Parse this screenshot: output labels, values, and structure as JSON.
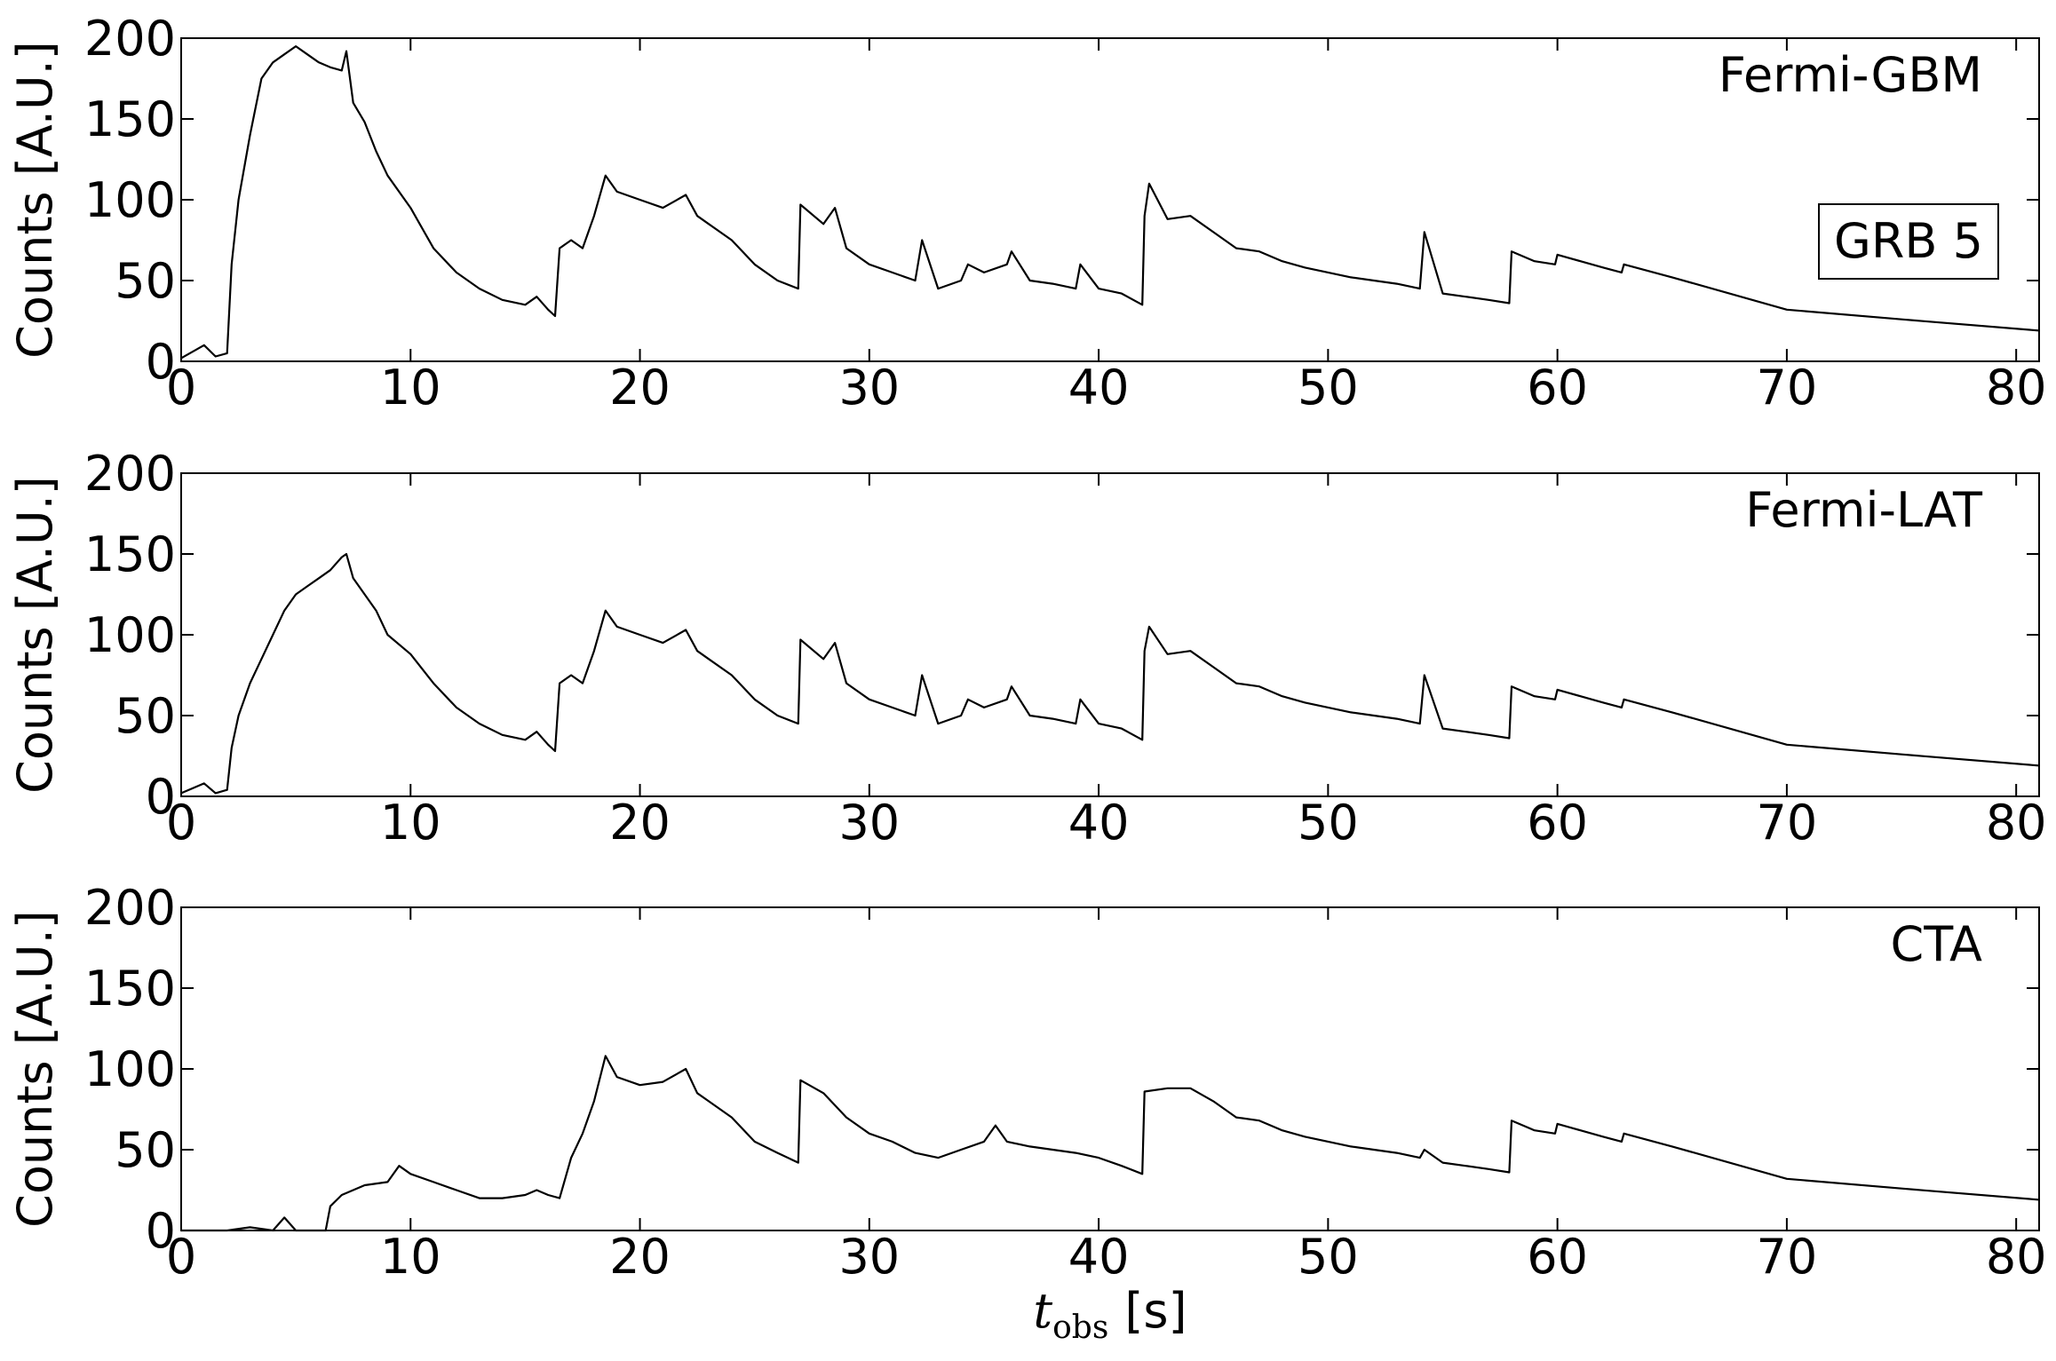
{
  "chart_data": [
    {
      "type": "line",
      "ylabel": "Counts [A.U.]",
      "annotation": "Fermi-GBM",
      "box_label": "GRB 5",
      "color": "#000000",
      "xlim": [
        0,
        81
      ],
      "xticks": [
        0,
        10,
        20,
        30,
        40,
        50,
        60,
        70,
        80
      ],
      "ylim": [
        0,
        200
      ],
      "yticks": [
        0,
        50,
        100,
        150,
        200
      ],
      "x": [
        0,
        1,
        1.5,
        2,
        2.2,
        2.5,
        3,
        3.5,
        4,
        4.5,
        5,
        5.5,
        6,
        6.5,
        7,
        7.2,
        7.5,
        8,
        8.5,
        9,
        10,
        11,
        12,
        13,
        14,
        15,
        15.5,
        16,
        16.3,
        16.5,
        17,
        17.5,
        18,
        18.5,
        19,
        20,
        21,
        22,
        22.5,
        23,
        24,
        25,
        26,
        26.9,
        27,
        28,
        28.5,
        29,
        30,
        31,
        32,
        32.3,
        33,
        34,
        34.3,
        35,
        36,
        36.2,
        37,
        38,
        39,
        39.2,
        40,
        41,
        41.9,
        42,
        42.2,
        43,
        44,
        45,
        46,
        47,
        48,
        49,
        50,
        51,
        52,
        53,
        54,
        54.2,
        55,
        56,
        57,
        57.9,
        58,
        59,
        59.9,
        60,
        61,
        62,
        62.8,
        62.9,
        65,
        70,
        75,
        81
      ],
      "values": [
        2,
        10,
        3,
        5,
        60,
        100,
        140,
        175,
        185,
        190,
        195,
        190,
        185,
        182,
        180,
        192,
        160,
        148,
        130,
        115,
        95,
        70,
        55,
        45,
        38,
        35,
        40,
        32,
        28,
        70,
        75,
        70,
        90,
        115,
        105,
        100,
        95,
        103,
        90,
        85,
        75,
        60,
        50,
        45,
        97,
        85,
        95,
        70,
        60,
        55,
        50,
        75,
        45,
        50,
        60,
        55,
        60,
        68,
        50,
        48,
        45,
        60,
        45,
        42,
        35,
        90,
        110,
        88,
        90,
        80,
        70,
        68,
        62,
        58,
        55,
        52,
        50,
        48,
        45,
        80,
        42,
        40,
        38,
        36,
        68,
        62,
        60,
        66,
        62,
        58,
        55,
        60,
        52,
        32,
        26,
        19
      ]
    },
    {
      "type": "line",
      "ylabel": "Counts [A.U.]",
      "annotation": "Fermi-LAT",
      "color": "#000000",
      "xlim": [
        0,
        81
      ],
      "xticks": [
        0,
        10,
        20,
        30,
        40,
        50,
        60,
        70,
        80
      ],
      "ylim": [
        0,
        200
      ],
      "yticks": [
        0,
        50,
        100,
        150,
        200
      ],
      "x": [
        0,
        1,
        1.5,
        2,
        2.2,
        2.5,
        3,
        3.5,
        4,
        4.5,
        5,
        5.5,
        6,
        6.5,
        7,
        7.2,
        7.5,
        8,
        8.5,
        9,
        10,
        11,
        12,
        13,
        14,
        15,
        15.5,
        16,
        16.3,
        16.5,
        17,
        17.5,
        18,
        18.5,
        19,
        20,
        21,
        22,
        22.5,
        23,
        24,
        25,
        26,
        26.9,
        27,
        28,
        28.5,
        29,
        30,
        31,
        32,
        32.3,
        33,
        34,
        34.3,
        35,
        36,
        36.2,
        37,
        38,
        39,
        39.2,
        40,
        41,
        41.9,
        42,
        42.2,
        43,
        44,
        45,
        46,
        47,
        48,
        49,
        50,
        51,
        52,
        53,
        54,
        54.2,
        55,
        56,
        57,
        57.9,
        58,
        59,
        59.9,
        60,
        61,
        62,
        62.8,
        62.9,
        65,
        70,
        75,
        81
      ],
      "values": [
        2,
        8,
        2,
        4,
        30,
        50,
        70,
        85,
        100,
        115,
        125,
        130,
        135,
        140,
        148,
        150,
        135,
        125,
        115,
        100,
        88,
        70,
        55,
        45,
        38,
        35,
        40,
        32,
        28,
        70,
        75,
        70,
        90,
        115,
        105,
        100,
        95,
        103,
        90,
        85,
        75,
        60,
        50,
        45,
        97,
        85,
        95,
        70,
        60,
        55,
        50,
        75,
        45,
        50,
        60,
        55,
        60,
        68,
        50,
        48,
        45,
        60,
        45,
        42,
        35,
        90,
        105,
        88,
        90,
        80,
        70,
        68,
        62,
        58,
        55,
        52,
        50,
        48,
        45,
        75,
        42,
        40,
        38,
        36,
        68,
        62,
        60,
        66,
        62,
        58,
        55,
        60,
        52,
        32,
        26,
        19
      ]
    },
    {
      "type": "line",
      "ylabel": "Counts [A.U.]",
      "annotation": "CTA",
      "color": "#000000",
      "xlabel": {
        "symbol": "t",
        "subscript": "obs",
        "unit": "[s]"
      },
      "xlim": [
        0,
        81
      ],
      "xticks": [
        0,
        10,
        20,
        30,
        40,
        50,
        60,
        70,
        80
      ],
      "ylim": [
        0,
        200
      ],
      "yticks": [
        0,
        50,
        100,
        150,
        200
      ],
      "x": [
        0,
        2,
        3,
        4,
        4.5,
        5,
        6.3,
        6.5,
        7,
        8,
        9,
        9.5,
        10,
        11,
        12,
        13,
        14,
        15,
        15.5,
        16,
        16.5,
        17,
        17.5,
        18,
        18.5,
        19,
        20,
        21,
        22,
        22.5,
        23,
        24,
        25,
        26,
        26.9,
        27,
        28,
        29,
        30,
        31,
        32,
        33,
        34,
        35,
        35.5,
        36,
        37,
        38,
        39,
        40,
        41,
        41.9,
        42,
        43,
        44,
        45,
        46,
        47,
        48,
        49,
        50,
        51,
        52,
        53,
        54,
        54.2,
        55,
        56,
        57,
        57.9,
        58,
        59,
        59.9,
        60,
        61,
        62,
        62.8,
        62.9,
        65,
        70,
        75,
        81
      ],
      "values": [
        0,
        0,
        2,
        0,
        8,
        0,
        0,
        15,
        22,
        28,
        30,
        40,
        35,
        30,
        25,
        20,
        20,
        22,
        25,
        22,
        20,
        45,
        60,
        80,
        108,
        95,
        90,
        92,
        100,
        85,
        80,
        70,
        55,
        48,
        42,
        93,
        85,
        70,
        60,
        55,
        48,
        45,
        50,
        55,
        65,
        55,
        52,
        50,
        48,
        45,
        40,
        35,
        86,
        88,
        88,
        80,
        70,
        68,
        62,
        58,
        55,
        52,
        50,
        48,
        45,
        50,
        42,
        40,
        38,
        36,
        68,
        62,
        60,
        66,
        62,
        58,
        55,
        60,
        52,
        32,
        26,
        19
      ]
    }
  ]
}
